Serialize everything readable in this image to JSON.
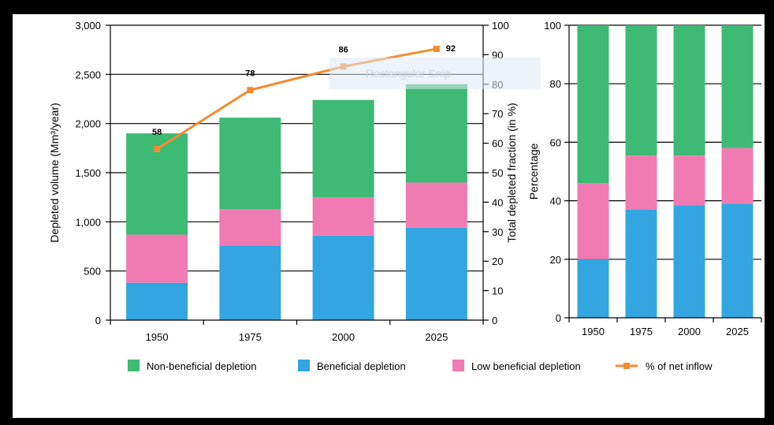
{
  "colors": {
    "non_beneficial": "#3dba74",
    "beneficial": "#33a5e1",
    "low_beneficial": "#f07ab2",
    "inflow_line": "#f58a31",
    "frame": "#000000",
    "panel": "#ffffff"
  },
  "chart_data": [
    {
      "type": "bar",
      "stacked": true,
      "categories": [
        "1950",
        "1975",
        "2000",
        "2025"
      ],
      "series": [
        {
          "name": "Beneficial depletion",
          "values": [
            380,
            760,
            860,
            940
          ]
        },
        {
          "name": "Low beneficial depletion",
          "values": [
            490,
            370,
            390,
            460
          ]
        },
        {
          "name": "Non-beneficial depletion",
          "values": [
            1030,
            930,
            990,
            1000
          ]
        }
      ],
      "ylabel": "Depleted volume (Mm³/year)",
      "ylim": [
        0,
        3000
      ],
      "yticks": [
        "0",
        "500",
        "1,000",
        "1,500",
        "2,000",
        "2,500",
        "3,000"
      ],
      "line": {
        "name": "% of net inflow",
        "values": [
          58,
          78,
          86,
          92
        ],
        "labels": [
          "58",
          "78",
          "86",
          "92"
        ],
        "axis_label": "Total depleted fraction (in %)",
        "ylim": [
          0,
          100
        ],
        "yticks": [
          "0",
          "10",
          "20",
          "30",
          "40",
          "50",
          "60",
          "70",
          "80",
          "90",
          "100"
        ]
      },
      "grid": "horizontal"
    },
    {
      "type": "bar",
      "stacked": true,
      "categories": [
        "1950",
        "1975",
        "2000",
        "2025"
      ],
      "series": [
        {
          "name": "Beneficial depletion",
          "values": [
            20,
            37,
            38.5,
            39
          ]
        },
        {
          "name": "Low beneficial depletion",
          "values": [
            26,
            18.5,
            17,
            19
          ]
        },
        {
          "name": "Non-beneficial depletion",
          "values": [
            54,
            44.5,
            44.5,
            42
          ]
        }
      ],
      "ylabel": "Percentage",
      "ylim": [
        0,
        100
      ],
      "yticks": [
        "0",
        "20",
        "40",
        "60",
        "80",
        "100"
      ],
      "grid": "horizontal"
    }
  ],
  "legend": [
    {
      "label": "Non-beneficial depletion",
      "kind": "swatch",
      "color": "#3dba74"
    },
    {
      "label": "Beneficial depletion",
      "kind": "swatch",
      "color": "#33a5e1"
    },
    {
      "label": "Low beneficial depletion",
      "kind": "swatch",
      "color": "#f07ab2"
    },
    {
      "label": "% of net inflow",
      "kind": "line",
      "color": "#f58a31"
    }
  ],
  "overlay": {
    "text": "Rectangular Snip"
  }
}
